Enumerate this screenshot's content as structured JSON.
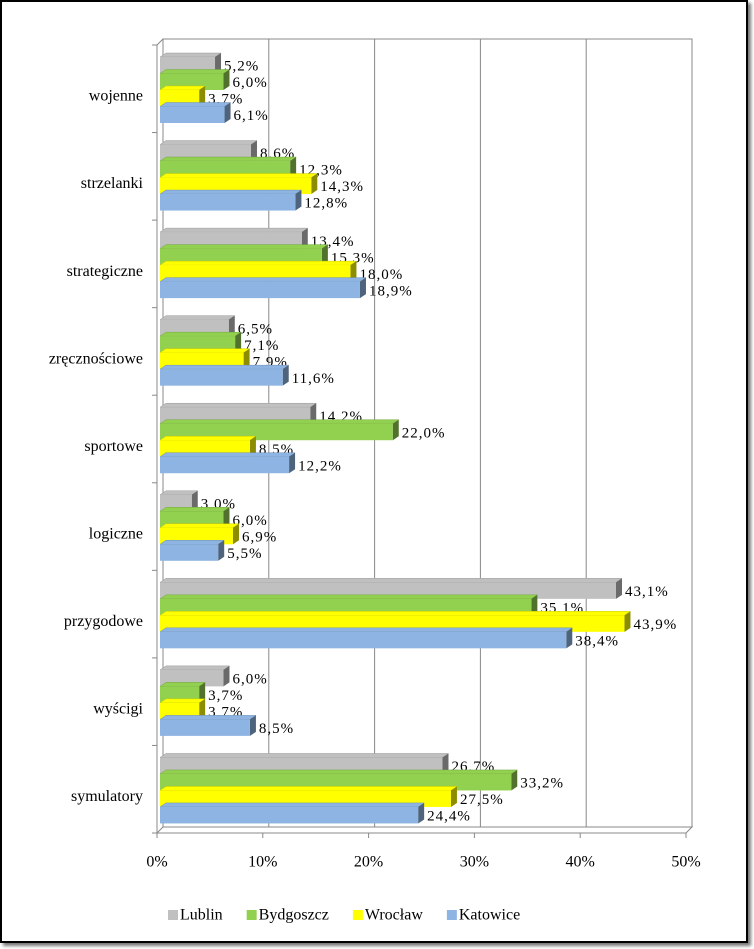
{
  "chart_data": {
    "type": "bar",
    "orientation": "horizontal",
    "categories": [
      "wojenne",
      "strzelanki",
      "strategiczne",
      "zręcznościowe",
      "sportowe",
      "logiczne",
      "przygodowe",
      "wyścigi",
      "symulatory"
    ],
    "series": [
      {
        "name": "Lublin",
        "color": "#c0c0c0",
        "values": [
          5.2,
          8.6,
          13.4,
          6.5,
          14.2,
          3.0,
          43.1,
          6.0,
          26.7
        ],
        "value_labels": [
          "5,2%",
          "8,6%",
          "13,4%",
          "6,5%",
          "14,2%",
          "3,0%",
          "43,1%",
          "6,0%",
          "26,7%"
        ]
      },
      {
        "name": "Bydgoszcz",
        "color": "#92d050",
        "values": [
          6.0,
          12.3,
          15.3,
          7.1,
          22.0,
          6.0,
          35.1,
          3.7,
          33.2
        ],
        "value_labels": [
          "6,0%",
          "12,3%",
          "15,3%",
          "7,1%",
          "22,0%",
          "6,0%",
          "35,1%",
          "3,7%",
          "33,2%"
        ]
      },
      {
        "name": "Wrocław",
        "color": "#ffff00",
        "values": [
          3.7,
          14.3,
          18.0,
          7.9,
          8.5,
          6.9,
          43.9,
          3.7,
          27.5
        ],
        "value_labels": [
          "3,7%",
          "14,3%",
          "18,0%",
          "7,9%",
          "8,5%",
          "6,9%",
          "43,9%",
          "3,7%",
          "27,5%"
        ]
      },
      {
        "name": "Katowice",
        "color": "#8db4e2",
        "values": [
          6.1,
          12.8,
          18.9,
          11.6,
          12.2,
          5.5,
          38.4,
          8.5,
          24.4
        ],
        "value_labels": [
          "6,1%",
          "12,8%",
          "18,9%",
          "11,6%",
          "12,2%",
          "5,5%",
          "38,4%",
          "8,5%",
          "24,4%"
        ]
      }
    ],
    "xlim": [
      0,
      50
    ],
    "xticks": [
      {
        "value": 0,
        "label": "0%"
      },
      {
        "value": 10,
        "label": "10%"
      },
      {
        "value": 20,
        "label": "20%"
      },
      {
        "value": 30,
        "label": "30%"
      },
      {
        "value": 40,
        "label": "40%"
      },
      {
        "value": 50,
        "label": "50%"
      }
    ],
    "grid": true,
    "legend": "bottom"
  }
}
